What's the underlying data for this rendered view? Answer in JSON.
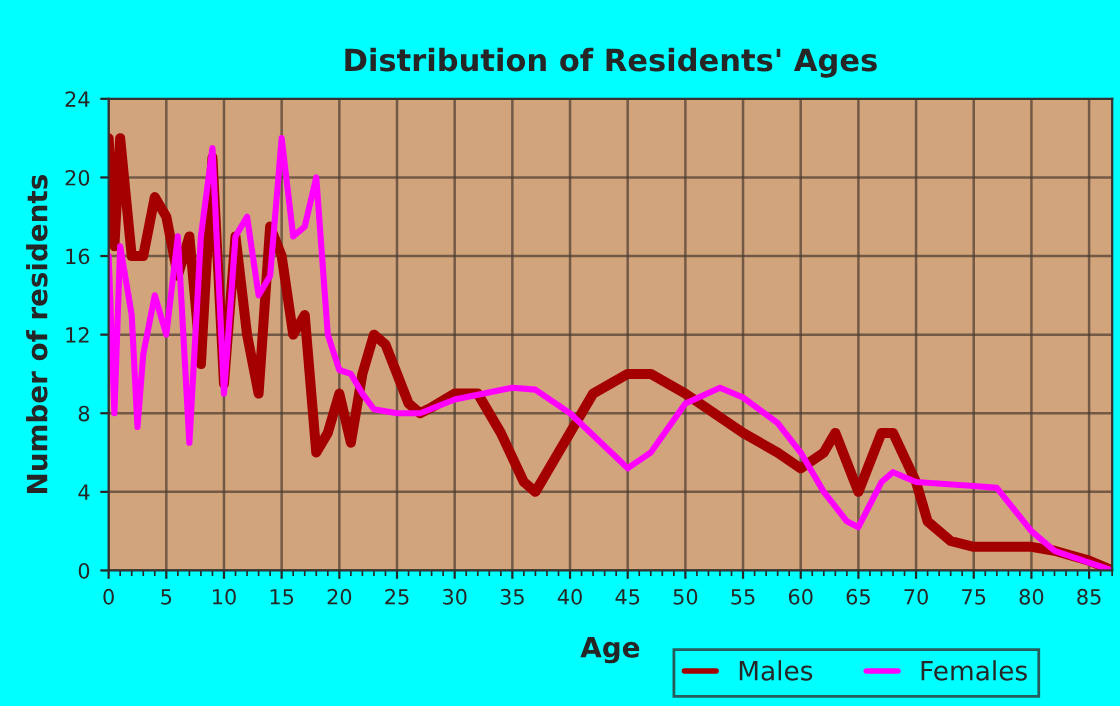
{
  "chart_data": {
    "type": "line",
    "title": "Distribution of Residents' Ages",
    "xlabel": "Age",
    "ylabel": "Number of residents",
    "xlim": [
      0,
      87
    ],
    "xticks": [
      0,
      5,
      10,
      15,
      20,
      25,
      30,
      35,
      40,
      45,
      50,
      55,
      60,
      65,
      70,
      75,
      80,
      85
    ],
    "ylim": [
      0,
      24
    ],
    "yticks": [
      0,
      4,
      8,
      12,
      16,
      20,
      24
    ],
    "grid": true,
    "legend": "bottom right",
    "marker": "none",
    "line_style": "solid",
    "series": [
      {
        "name": "Males",
        "color": "#a50000",
        "x": [
          0,
          0.5,
          1,
          2,
          3,
          4,
          5,
          6,
          7,
          8,
          9,
          10,
          11,
          12,
          13,
          14,
          15,
          16,
          17,
          18,
          19,
          20,
          21,
          22,
          23,
          24,
          25,
          26,
          27,
          28,
          30,
          32,
          34,
          36,
          37,
          39,
          42,
          45,
          47,
          50,
          55,
          58,
          60,
          62,
          63,
          65,
          67,
          68,
          70,
          71,
          73,
          75,
          80,
          82,
          85,
          87
        ],
        "values": [
          22,
          16.5,
          22,
          16,
          16,
          19,
          18,
          15,
          17,
          10.5,
          21,
          9.5,
          17,
          12,
          9,
          17.5,
          16,
          12,
          13,
          6,
          7,
          9,
          6.5,
          10,
          12,
          11.5,
          10,
          8.5,
          8,
          8.3,
          9,
          9,
          7,
          4.5,
          4,
          6,
          9,
          10,
          10,
          9,
          7,
          6,
          5.2,
          6,
          7,
          4,
          7,
          7,
          4.5,
          2.5,
          1.5,
          1.2,
          1.2,
          1,
          0.5,
          0
        ]
      },
      {
        "name": "Females",
        "color": "#ff00ff",
        "x": [
          0,
          0.5,
          1,
          2,
          2.5,
          3,
          4,
          5,
          6,
          7,
          8,
          9,
          10,
          11,
          12,
          13,
          14,
          15,
          16,
          17,
          18,
          19,
          20,
          21,
          22,
          23,
          25,
          27,
          30,
          35,
          37,
          40,
          45,
          47,
          50,
          53,
          55,
          58,
          60,
          62,
          64,
          65,
          67,
          68,
          70,
          75,
          77,
          80,
          82,
          87
        ],
        "values": [
          16,
          8,
          16.5,
          13,
          7.3,
          11,
          14,
          12,
          17,
          6.5,
          17,
          21.5,
          9,
          17,
          18,
          14,
          15,
          22,
          17,
          17.5,
          20,
          12,
          10.2,
          10,
          9,
          8.2,
          8,
          8,
          8.7,
          9.3,
          9.2,
          8,
          5.2,
          6,
          8.5,
          9.3,
          8.8,
          7.5,
          6,
          4,
          2.5,
          2.2,
          4.5,
          5,
          4.5,
          4.3,
          4.2,
          2,
          1,
          0
        ]
      }
    ]
  }
}
